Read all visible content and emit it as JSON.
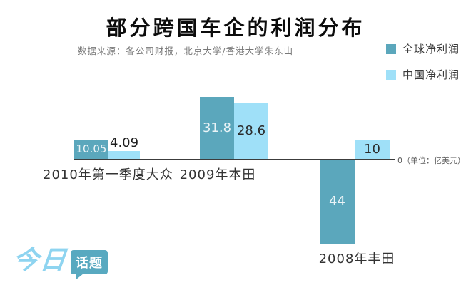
{
  "header": {
    "title": "部分跨国车企的利润分布",
    "subtitle": "数据来源：各公司财报，北京大学/香港大学朱东山"
  },
  "legend": {
    "items": [
      {
        "label": "全球净利润",
        "color": "#5ba7bc"
      },
      {
        "label": "中国净利润",
        "color": "#9fe0f8"
      }
    ]
  },
  "branding": {
    "logo_text_1": "今日",
    "logo_text_2": "话题",
    "logo_text_color": "#8ed4f0",
    "bubble_color": "#58a9c0"
  },
  "chart_data": {
    "type": "bar",
    "title": "部分跨国车企的利润分布",
    "source": "数据来源：各公司财报，北京大学/香港大学朱东山",
    "unit": "亿美元",
    "unit_axis_label": "0（单位：亿美元）",
    "baseline": 0,
    "legend_position": "top-right",
    "grid": false,
    "colors": {
      "global": "#5ba7bc",
      "china": "#9fe0f8"
    },
    "categories": [
      "2010年第一季度大众",
      "2009年本田",
      "2008年丰田"
    ],
    "series": [
      {
        "name": "全球净利润",
        "values": [
          10.05,
          31.8,
          -44
        ],
        "labels": [
          "10.05",
          "31.8",
          "44"
        ]
      },
      {
        "name": "中国净利润",
        "values": [
          4.09,
          28.6,
          10
        ],
        "labels": [
          "4.09",
          "28.6",
          "10"
        ]
      }
    ],
    "ylim": [
      -50,
      35
    ]
  }
}
